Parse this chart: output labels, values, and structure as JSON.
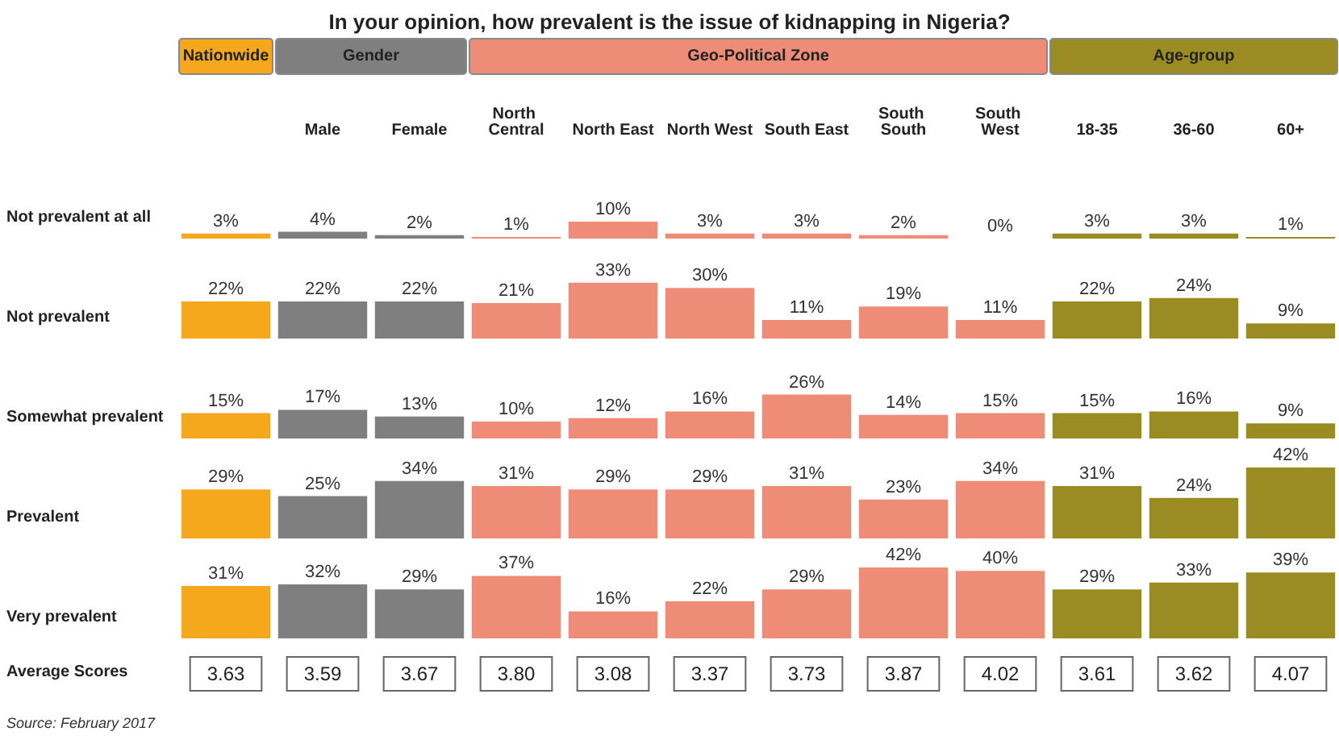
{
  "chart_data": [
    {
      "type": "bar",
      "title": "In your opinion, how prevalent is the issue of kidnapping in Nigeria?",
      "ylabel": "Not prevalent at all",
      "annotations": [
        "Nationwide",
        "Gender",
        "Geo-Political Zone",
        "Age-group"
      ],
      "tick_labels": "x",
      "categories": [
        null,
        "Male",
        "Female",
        "North Central",
        "North East",
        "North West",
        "South East",
        "South South",
        "South West",
        "18-35",
        "36-60",
        "60+"
      ],
      "values": [
        3,
        4,
        2,
        1,
        10,
        3,
        3,
        2,
        0,
        3,
        3,
        1
      ],
      "value_labels": [
        "3%",
        "4%",
        "2%",
        "1%",
        "10%",
        "3%",
        "3%",
        "2%",
        "0%",
        "3%",
        "3%",
        "1%"
      ],
      "colors": [
        "#f5a81c",
        "#7f7f7f",
        "#7f7f7f",
        "#ee8c78",
        "#ee8c78",
        "#ee8c78",
        "#ee8c78",
        "#ee8c78",
        "#ee8c78",
        "#9a8c22",
        "#9a8c22",
        "#9a8c22"
      ]
    },
    {
      "type": "bar",
      "ylabel": "Not prevalent",
      "tick_labels": false,
      "categories": [
        null,
        "Male",
        "Female",
        "North Central",
        "North East",
        "North West",
        "South East",
        "South South",
        "South West",
        "18-35",
        "36-60",
        "60+"
      ],
      "values": [
        22,
        22,
        22,
        21,
        33,
        30,
        11,
        19,
        11,
        22,
        24,
        9
      ],
      "value_labels": [
        "22%",
        "22%",
        "22%",
        "21%",
        "33%",
        "30%",
        "11%",
        "19%",
        "11%",
        "22%",
        "24%",
        "9%"
      ],
      "colors": [
        "#f5a81c",
        "#7f7f7f",
        "#7f7f7f",
        "#ee8c78",
        "#ee8c78",
        "#ee8c78",
        "#ee8c78",
        "#ee8c78",
        "#ee8c78",
        "#9a8c22",
        "#9a8c22",
        "#9a8c22"
      ]
    },
    {
      "type": "bar",
      "ylabel": "Somewhat prevalent",
      "tick_labels": false,
      "categories": [
        null,
        "Male",
        "Female",
        "North Central",
        "North East",
        "North West",
        "South East",
        "South South",
        "South West",
        "18-35",
        "36-60",
        "60+"
      ],
      "values": [
        15,
        17,
        13,
        10,
        12,
        16,
        26,
        14,
        15,
        15,
        16,
        9
      ],
      "value_labels": [
        "15%",
        "17%",
        "13%",
        "10%",
        "12%",
        "16%",
        "26%",
        "14%",
        "15%",
        "15%",
        "16%",
        "9%"
      ],
      "colors": [
        "#f5a81c",
        "#7f7f7f",
        "#7f7f7f",
        "#ee8c78",
        "#ee8c78",
        "#ee8c78",
        "#ee8c78",
        "#ee8c78",
        "#ee8c78",
        "#9a8c22",
        "#9a8c22",
        "#9a8c22"
      ]
    },
    {
      "type": "bar",
      "ylabel": "Prevalent",
      "tick_labels": false,
      "categories": [
        null,
        "Male",
        "Female",
        "North Central",
        "North East",
        "North West",
        "South East",
        "South South",
        "South West",
        "18-35",
        "36-60",
        "60+"
      ],
      "values": [
        29,
        25,
        34,
        31,
        29,
        29,
        31,
        23,
        34,
        31,
        24,
        42
      ],
      "value_labels": [
        "29%",
        "25%",
        "34%",
        "31%",
        "29%",
        "29%",
        "31%",
        "23%",
        "34%",
        "31%",
        "24%",
        "42%"
      ],
      "colors": [
        "#f5a81c",
        "#7f7f7f",
        "#7f7f7f",
        "#ee8c78",
        "#ee8c78",
        "#ee8c78",
        "#ee8c78",
        "#ee8c78",
        "#ee8c78",
        "#9a8c22",
        "#9a8c22",
        "#9a8c22"
      ]
    },
    {
      "type": "bar",
      "ylabel": "Very prevalent",
      "tick_labels": false,
      "categories": [
        null,
        "Male",
        "Female",
        "North Central",
        "North East",
        "North West",
        "South East",
        "South South",
        "South West",
        "18-35",
        "36-60",
        "60+"
      ],
      "values": [
        31,
        32,
        29,
        37,
        16,
        22,
        29,
        42,
        40,
        29,
        33,
        39
      ],
      "value_labels": [
        "31%",
        "32%",
        "29%",
        "37%",
        "16%",
        "22%",
        "29%",
        "42%",
        "40%",
        "29%",
        "33%",
        "39%"
      ],
      "colors": [
        "#f5a81c",
        "#7f7f7f",
        "#7f7f7f",
        "#ee8c78",
        "#ee8c78",
        "#ee8c78",
        "#ee8c78",
        "#ee8c78",
        "#ee8c78",
        "#9a8c22",
        "#9a8c22",
        "#9a8c22"
      ]
    },
    {
      "type": "other",
      "ylabel": "Average Scores",
      "values": [
        3.63,
        3.59,
        3.67,
        3.8,
        3.08,
        3.37,
        3.73,
        3.87,
        4.02,
        3.61,
        3.62,
        4.07
      ],
      "value_labels": [
        "3.63",
        "3.59",
        "3.67",
        "3.80",
        "3.08",
        "3.37",
        "3.73",
        "3.87",
        "4.02",
        "3.61",
        "3.62",
        "4.07"
      ],
      "annotations": [
        "Source: February 2017"
      ]
    }
  ]
}
